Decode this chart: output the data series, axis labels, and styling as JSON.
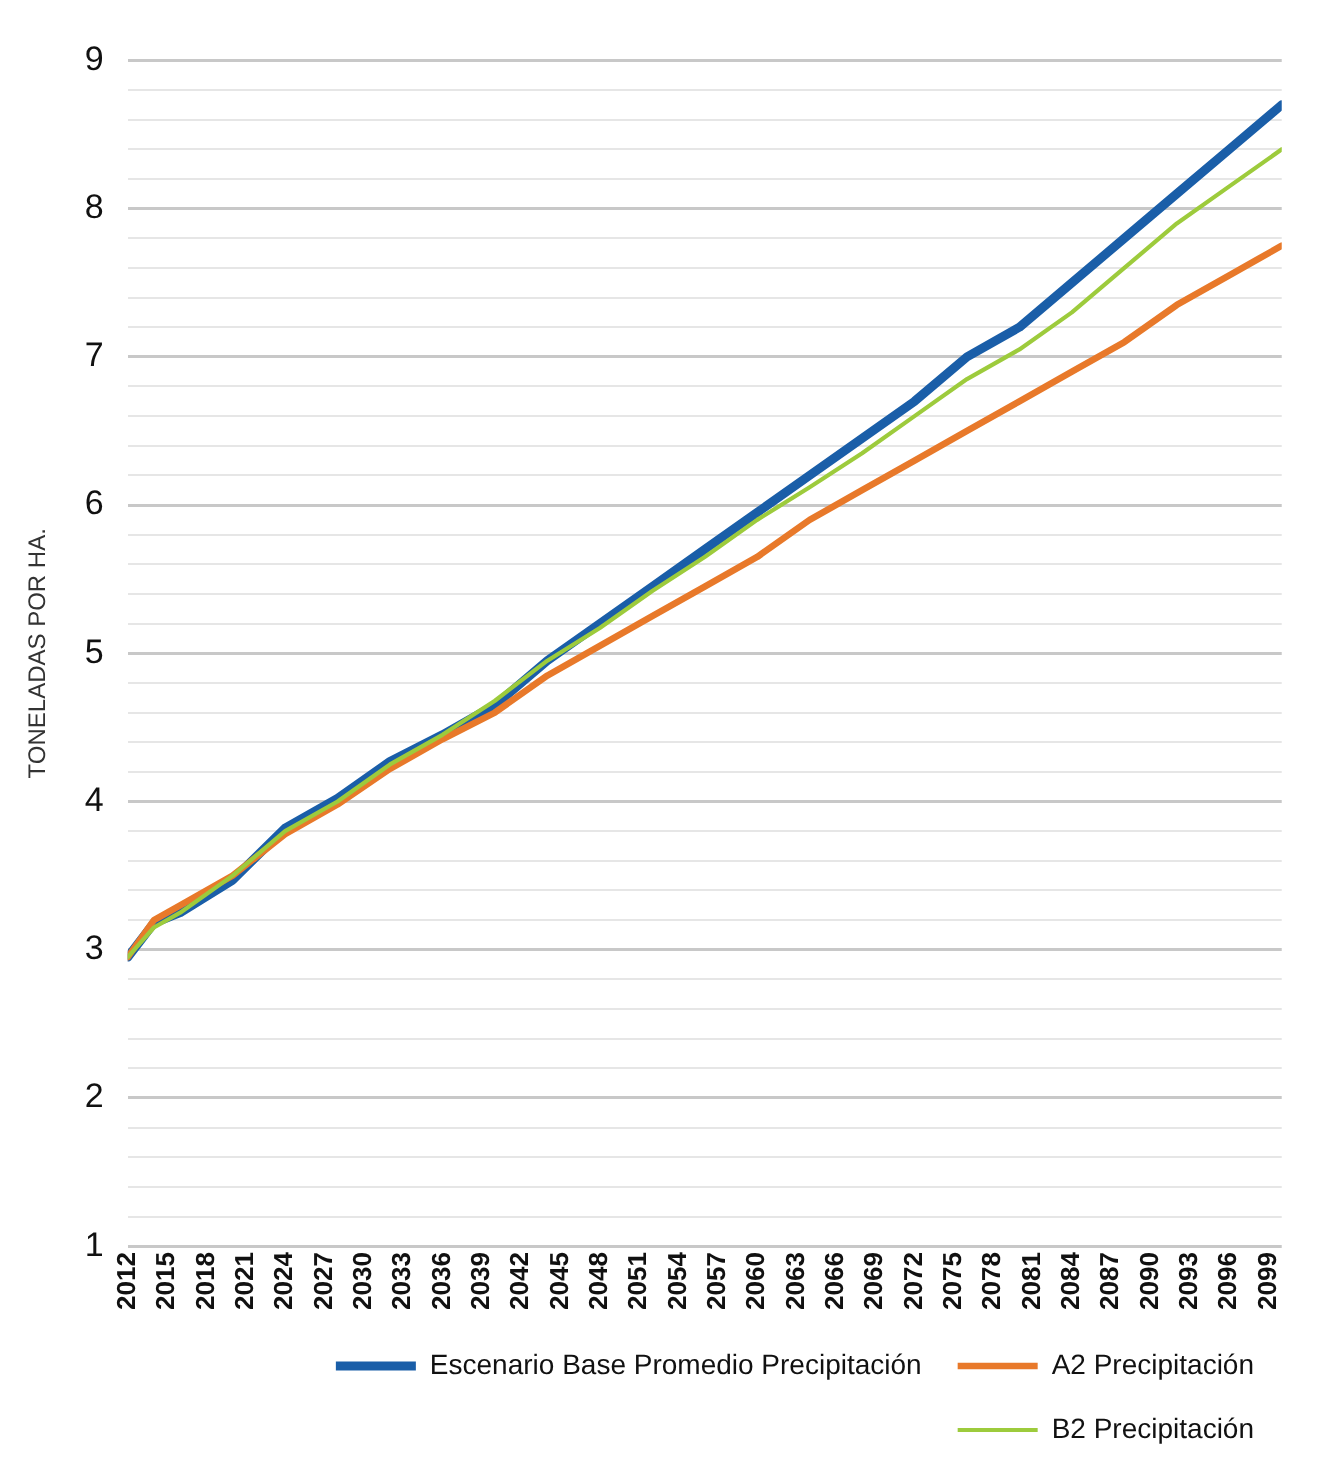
{
  "chart_data": {
    "type": "line",
    "ylabel": "TONELADAS POR HA.",
    "x": [
      2012,
      2014,
      2016,
      2020,
      2024,
      2028,
      2032,
      2036,
      2040,
      2044,
      2048,
      2052,
      2056,
      2060,
      2064,
      2068,
      2072,
      2076,
      2080,
      2084,
      2088,
      2092,
      2096,
      2100
    ],
    "series": [
      {
        "name": "Escenario Base Promedio Precipitación",
        "color": "#1a5ea8",
        "values": [
          2.95,
          3.18,
          3.25,
          3.47,
          3.82,
          4.02,
          4.27,
          4.45,
          4.65,
          4.95,
          5.2,
          5.45,
          5.7,
          5.95,
          6.2,
          6.45,
          6.7,
          7.0,
          7.2,
          7.5,
          7.8,
          8.1,
          8.4,
          8.7
        ]
      },
      {
        "name": "A2 Precipitación",
        "color": "#e8792a",
        "values": [
          2.95,
          3.2,
          3.3,
          3.5,
          3.78,
          3.98,
          4.22,
          4.42,
          4.6,
          4.85,
          5.05,
          5.25,
          5.45,
          5.65,
          5.9,
          6.1,
          6.3,
          6.5,
          6.7,
          6.9,
          7.1,
          7.35,
          7.55,
          7.75
        ]
      },
      {
        "name": "B2 Precipitación",
        "color": "#9dcb3c",
        "values": [
          2.95,
          3.15,
          3.25,
          3.5,
          3.8,
          4.0,
          4.25,
          4.45,
          4.68,
          4.95,
          5.17,
          5.42,
          5.65,
          5.9,
          6.12,
          6.35,
          6.6,
          6.85,
          7.05,
          7.3,
          7.6,
          7.9,
          8.15,
          8.4
        ]
      }
    ],
    "xlim": [
      2012,
      2100
    ],
    "xticks": [
      2012,
      2015,
      2018,
      2021,
      2024,
      2027,
      2030,
      2033,
      2036,
      2039,
      2042,
      2045,
      2048,
      2051,
      2054,
      2057,
      2060,
      2063,
      2066,
      2069,
      2072,
      2075,
      2078,
      2081,
      2084,
      2087,
      2090,
      2093,
      2096,
      2099
    ],
    "ylim": [
      1,
      9
    ],
    "yticks": [
      1,
      {
        "value": 1.2,
        "label": null
      },
      {
        "value": 1.4,
        "label": null
      },
      {
        "value": 1.6,
        "label": null
      },
      {
        "value": 1.8,
        "label": null
      },
      2,
      {
        "value": 2.2,
        "label": null
      },
      {
        "value": 2.4,
        "label": null
      },
      {
        "value": 2.6,
        "label": null
      },
      {
        "value": 2.8,
        "label": null
      },
      3,
      {
        "value": 3.2,
        "label": null
      },
      {
        "value": 3.4,
        "label": null
      },
      {
        "value": 3.6,
        "label": null
      },
      {
        "value": 3.8,
        "label": null
      },
      4,
      {
        "value": 4.2,
        "label": null
      },
      {
        "value": 4.4,
        "label": null
      },
      {
        "value": 4.6,
        "label": null
      },
      {
        "value": 4.8,
        "label": null
      },
      5,
      {
        "value": 5.2,
        "label": null
      },
      {
        "value": 5.4,
        "label": null
      },
      {
        "value": 5.6,
        "label": null
      },
      {
        "value": 5.8,
        "label": null
      },
      6,
      {
        "value": 6.2,
        "label": null
      },
      {
        "value": 6.4,
        "label": null
      },
      {
        "value": 6.6,
        "label": null
      },
      {
        "value": 6.8,
        "label": null
      },
      7,
      {
        "value": 7.2,
        "label": null
      },
      {
        "value": 7.4,
        "label": null
      },
      {
        "value": 7.6,
        "label": null
      },
      {
        "value": 7.8,
        "label": null
      },
      8,
      {
        "value": 8.2,
        "label": null
      },
      {
        "value": 8.4,
        "label": null
      },
      {
        "value": 8.6,
        "label": null
      },
      {
        "value": 8.8,
        "label": null
      },
      9
    ],
    "grid": "y",
    "legend": "bottom",
    "marker": "none",
    "line_style": "solid"
  }
}
